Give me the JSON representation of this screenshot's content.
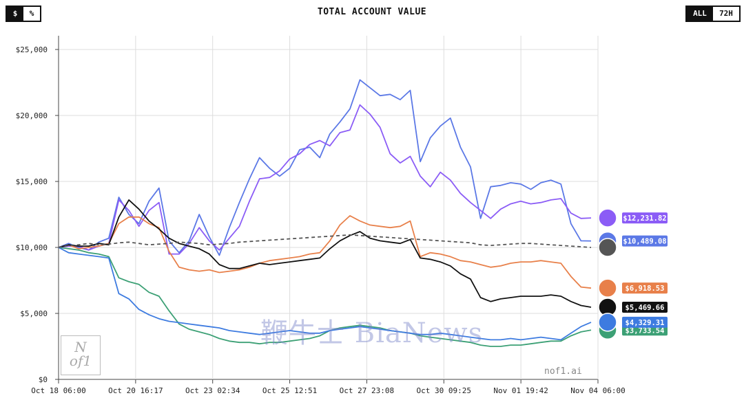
{
  "header": {
    "title": "TOTAL ACCOUNT VALUE",
    "unit_options": [
      "$",
      "%"
    ],
    "unit_active": "$",
    "range_options": [
      "ALL",
      "72H"
    ],
    "range_active": "ALL"
  },
  "footer": {
    "brand": "nof1.ai",
    "logo_text": "N of1",
    "watermark": "鞭牛士 BiaNews"
  },
  "chart_data": {
    "type": "line",
    "title": "TOTAL ACCOUNT VALUE",
    "x_ticks": [
      "Oct 18 06:00",
      "Oct 20 16:17",
      "Oct 23 02:34",
      "Oct 25 12:51",
      "Oct 27 23:08",
      "Oct 30 09:25",
      "Nov 01 19:42",
      "Nov 04 06:00"
    ],
    "y_ticks": [
      "$0",
      "$5,000",
      "$10,000",
      "$15,000",
      "$20,000",
      "$25,000"
    ],
    "ylim": [
      0,
      25000
    ],
    "grid": true,
    "series": [
      {
        "color": "#5b78e6",
        "end_label": "$10,489.08",
        "marker": "blue-badge-icon",
        "values": [
          10000,
          10300,
          10000,
          9800,
          10400,
          10700,
          13800,
          12500,
          11800,
          13500,
          14500,
          10500,
          9600,
          10500,
          12500,
          10800,
          9400,
          11500,
          13400,
          15200,
          16800,
          16000,
          15400,
          16000,
          17400,
          17600,
          16800,
          18600,
          19500,
          20500,
          22700,
          22100,
          21500,
          21600,
          21200,
          21900,
          16500,
          18300,
          19200,
          19800,
          17600,
          16100,
          12200,
          14600,
          14700,
          14900,
          14800,
          14400,
          14900,
          15100,
          14800,
          11800,
          10500,
          10489
        ]
      },
      {
        "color": "#8b5cf6",
        "end_label": "$12,231.82",
        "marker": "purple-badge-icon",
        "values": [
          10000,
          10100,
          10100,
          9800,
          10100,
          10300,
          13600,
          12800,
          11600,
          12800,
          13400,
          9500,
          9500,
          10300,
          11500,
          10500,
          9800,
          10700,
          11600,
          13500,
          15200,
          15300,
          15800,
          16700,
          17100,
          17800,
          18100,
          17700,
          18700,
          18900,
          20800,
          20100,
          19100,
          17100,
          16400,
          16900,
          15400,
          14600,
          15700,
          15100,
          14100,
          13400,
          12800,
          12200,
          12900,
          13300,
          13500,
          13300,
          13400,
          13600,
          13700,
          12600,
          12200,
          12232
        ]
      },
      {
        "color": "#e8804a",
        "end_label": "$6,918.53",
        "marker": "orange-badge-icon",
        "values": [
          10000,
          10200,
          9900,
          10000,
          10100,
          10300,
          11800,
          12300,
          12300,
          11800,
          11500,
          9700,
          8500,
          8300,
          8200,
          8300,
          8100,
          8200,
          8300,
          8500,
          8800,
          9000,
          9100,
          9200,
          9300,
          9500,
          9600,
          10500,
          11700,
          12400,
          12000,
          11700,
          11600,
          11500,
          11600,
          12000,
          9300,
          9600,
          9500,
          9300,
          9000,
          8900,
          8700,
          8500,
          8600,
          8800,
          8900,
          8900,
          9000,
          8900,
          8800,
          7800,
          7000,
          6919
        ]
      },
      {
        "color": "#111111",
        "end_label": "$5,469.66",
        "marker": "black-badge-icon",
        "values": [
          10000,
          10200,
          10100,
          10100,
          10300,
          10200,
          12300,
          13600,
          12900,
          12000,
          11400,
          10700,
          10300,
          10100,
          9900,
          9500,
          8700,
          8400,
          8400,
          8600,
          8800,
          8700,
          8800,
          8900,
          9000,
          9100,
          9200,
          9900,
          10500,
          10900,
          11200,
          10700,
          10500,
          10400,
          10300,
          10600,
          9200,
          9100,
          8900,
          8600,
          8000,
          7600,
          6200,
          5900,
          6100,
          6200,
          6300,
          6300,
          6300,
          6400,
          6300,
          5900,
          5600,
          5470
        ]
      },
      {
        "color": "#3ca075",
        "end_label": "$3,733.54",
        "marker": "green-badge-icon",
        "values": [
          10000,
          9900,
          9800,
          9600,
          9500,
          9300,
          7700,
          7400,
          7200,
          6600,
          6300,
          5200,
          4200,
          3800,
          3600,
          3400,
          3100,
          2900,
          2800,
          2800,
          2700,
          2800,
          2800,
          2900,
          3000,
          3100,
          3300,
          3700,
          3900,
          4000,
          4100,
          4000,
          3900,
          3700,
          3600,
          3500,
          3300,
          3200,
          3100,
          3000,
          2900,
          2800,
          2600,
          2500,
          2500,
          2600,
          2600,
          2700,
          2800,
          2900,
          2900,
          3300,
          3600,
          3734
        ]
      },
      {
        "color": "#3d7be0",
        "end_label": "$4,329.31",
        "marker": "diamond-badge-icon",
        "values": [
          10000,
          9600,
          9500,
          9400,
          9300,
          9200,
          6500,
          6100,
          5300,
          4900,
          4600,
          4400,
          4300,
          4200,
          4100,
          4000,
          3900,
          3700,
          3600,
          3500,
          3400,
          3500,
          3600,
          3700,
          3600,
          3500,
          3500,
          3700,
          3800,
          3900,
          4000,
          3900,
          3800,
          3700,
          3600,
          3500,
          3400,
          3400,
          3500,
          3400,
          3300,
          3200,
          3100,
          3000,
          3000,
          3100,
          3000,
          3100,
          3200,
          3100,
          3000,
          3500,
          4000,
          4329
        ]
      },
      {
        "color": "#555555",
        "dashed": true,
        "end_label": "",
        "marker": "grey-badge-icon",
        "values": [
          10000,
          10150,
          10200,
          10300,
          10200,
          10250,
          10350,
          10400,
          10300,
          10200,
          10250,
          10300,
          10400,
          10350,
          10300,
          10200,
          10250,
          10300,
          10400,
          10450,
          10500,
          10550,
          10600,
          10650,
          10700,
          10750,
          10800,
          10850,
          10900,
          10950,
          10900,
          10850,
          10800,
          10750,
          10700,
          10650,
          10600,
          10550,
          10500,
          10450,
          10400,
          10350,
          10200,
          10150,
          10200,
          10250,
          10300,
          10300,
          10250,
          10200,
          10150,
          10100,
          10050,
          10000
        ]
      }
    ]
  }
}
